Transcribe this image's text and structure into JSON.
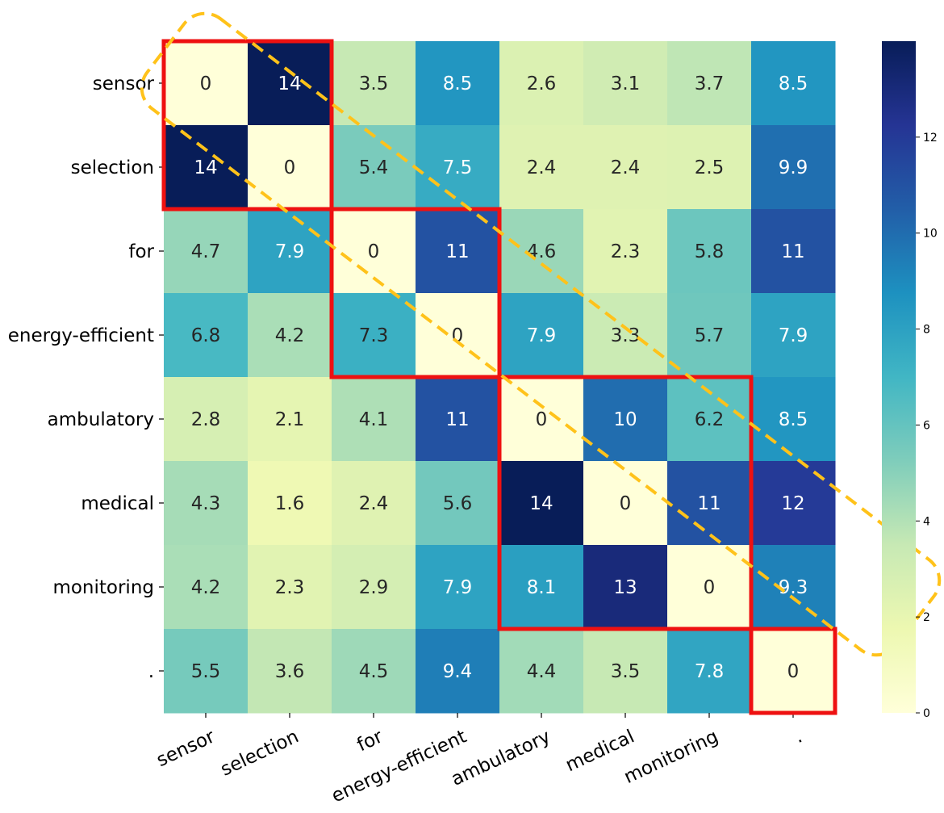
{
  "chart_data": {
    "type": "heatmap",
    "title": "",
    "xlabel": "",
    "ylabel": "",
    "row_labels": [
      "sensor",
      "selection",
      "for",
      "energy-efficient",
      "ambulatory",
      "medical",
      "monitoring",
      "."
    ],
    "col_labels": [
      "sensor",
      "selection",
      "for",
      "energy-efficient",
      "ambulatory",
      "medical",
      "monitoring",
      "."
    ],
    "values": [
      [
        0,
        14,
        3.5,
        8.5,
        2.6,
        3.1,
        3.7,
        8.5
      ],
      [
        14,
        0,
        5.4,
        7.5,
        2.4,
        2.4,
        2.5,
        9.9
      ],
      [
        4.7,
        7.9,
        0,
        11,
        4.6,
        2.3,
        5.8,
        11
      ],
      [
        6.8,
        4.2,
        7.3,
        0,
        7.9,
        3.3,
        5.7,
        7.9
      ],
      [
        2.8,
        2.1,
        4.1,
        11,
        0,
        10,
        6.2,
        8.5
      ],
      [
        4.3,
        1.6,
        2.4,
        5.6,
        14,
        0,
        11,
        12
      ],
      [
        4.2,
        2.3,
        2.9,
        7.9,
        8.1,
        13,
        0,
        9.3
      ],
      [
        5.5,
        3.6,
        4.5,
        9.4,
        4.4,
        3.5,
        7.8,
        0
      ]
    ],
    "colormap": "YlGnBu",
    "colorbar": {
      "min": 0,
      "max": 14,
      "ticks": [
        0,
        2,
        4,
        6,
        8,
        10,
        12
      ]
    },
    "highlight_blocks": [
      {
        "rows": [
          0,
          1
        ],
        "cols": [
          0,
          1
        ]
      },
      {
        "rows": [
          2,
          3
        ],
        "cols": [
          2,
          3
        ]
      },
      {
        "rows": [
          4,
          6
        ],
        "cols": [
          4,
          6
        ]
      },
      {
        "rows": [
          7,
          7
        ],
        "cols": [
          7,
          7
        ]
      }
    ],
    "highlight_color": "#ee1111",
    "diagonal_outline_color": "#ffc21a"
  }
}
